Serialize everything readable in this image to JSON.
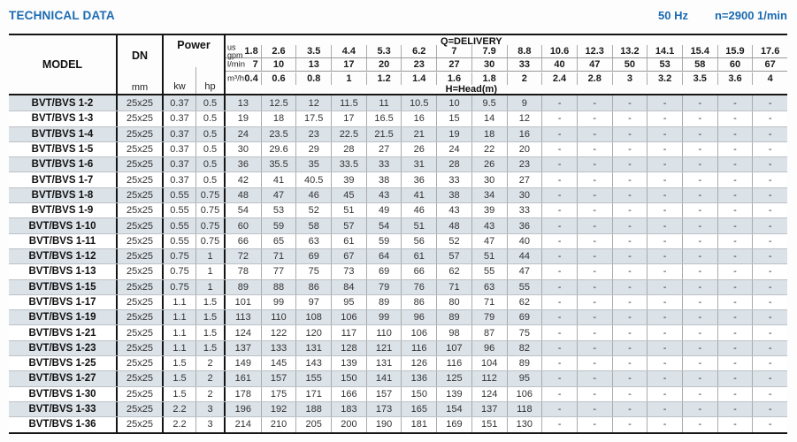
{
  "page": {
    "title": "TECHNICAL DATA",
    "frequency": "50 Hz",
    "speed": "n=2900 1/min"
  },
  "table": {
    "headers": {
      "model": "MODEL",
      "dn": "DN",
      "dn_unit": "mm",
      "power": "Power",
      "power_kw": "kw",
      "power_hp": "hp",
      "delivery_title": "Q=DELIVERY",
      "head_title": "H=Head(m)",
      "unit_rows": [
        {
          "label": "us\ngpm",
          "values": [
            "1.8",
            "2.6",
            "3.5",
            "4.4",
            "5.3",
            "6.2",
            "7",
            "7.9",
            "8.8",
            "10.6",
            "12.3",
            "13.2",
            "14.1",
            "15.4",
            "15.9",
            "17.6"
          ]
        },
        {
          "label": "l/min",
          "values": [
            "7",
            "10",
            "13",
            "17",
            "20",
            "23",
            "27",
            "30",
            "33",
            "40",
            "47",
            "50",
            "53",
            "58",
            "60",
            "67"
          ]
        },
        {
          "label": "m³/h",
          "values": [
            "0.4",
            "0.6",
            "0.8",
            "1",
            "1.2",
            "1.4",
            "1.6",
            "1.8",
            "2",
            "2.4",
            "2.8",
            "3",
            "3.2",
            "3.5",
            "3.6",
            "4"
          ]
        }
      ]
    },
    "rows": [
      {
        "model": "BVT/BVS 1-2",
        "dn": "25x25",
        "kw": "0.37",
        "hp": "0.5",
        "head": [
          "13",
          "12.5",
          "12",
          "11.5",
          "11",
          "10.5",
          "10",
          "9.5",
          "9",
          "-",
          "-",
          "-",
          "-",
          "-",
          "-",
          "-"
        ]
      },
      {
        "model": "BVT/BVS 1-3",
        "dn": "25x25",
        "kw": "0.37",
        "hp": "0.5",
        "head": [
          "19",
          "18",
          "17.5",
          "17",
          "16.5",
          "16",
          "15",
          "14",
          "12",
          "-",
          "-",
          "-",
          "-",
          "-",
          "-",
          "-"
        ]
      },
      {
        "model": "BVT/BVS 1-4",
        "dn": "25x25",
        "kw": "0.37",
        "hp": "0.5",
        "head": [
          "24",
          "23.5",
          "23",
          "22.5",
          "21.5",
          "21",
          "19",
          "18",
          "16",
          "-",
          "-",
          "-",
          "-",
          "-",
          "-",
          "-"
        ]
      },
      {
        "model": "BVT/BVS 1-5",
        "dn": "25x25",
        "kw": "0.37",
        "hp": "0.5",
        "head": [
          "30",
          "29.6",
          "29",
          "28",
          "27",
          "26",
          "24",
          "22",
          "20",
          "-",
          "-",
          "-",
          "-",
          "-",
          "-",
          "-"
        ]
      },
      {
        "model": "BVT/BVS 1-6",
        "dn": "25x25",
        "kw": "0.37",
        "hp": "0.5",
        "head": [
          "36",
          "35.5",
          "35",
          "33.5",
          "33",
          "31",
          "28",
          "26",
          "23",
          "-",
          "-",
          "-",
          "-",
          "-",
          "-",
          "-"
        ]
      },
      {
        "model": "BVT/BVS 1-7",
        "dn": "25x25",
        "kw": "0.37",
        "hp": "0.5",
        "head": [
          "42",
          "41",
          "40.5",
          "39",
          "38",
          "36",
          "33",
          "30",
          "27",
          "-",
          "-",
          "-",
          "-",
          "-",
          "-",
          "-"
        ]
      },
      {
        "model": "BVT/BVS 1-8",
        "dn": "25x25",
        "kw": "0.55",
        "hp": "0.75",
        "head": [
          "48",
          "47",
          "46",
          "45",
          "43",
          "41",
          "38",
          "34",
          "30",
          "-",
          "-",
          "-",
          "-",
          "-",
          "-",
          "-"
        ]
      },
      {
        "model": "BVT/BVS 1-9",
        "dn": "25x25",
        "kw": "0.55",
        "hp": "0.75",
        "head": [
          "54",
          "53",
          "52",
          "51",
          "49",
          "46",
          "43",
          "39",
          "33",
          "-",
          "-",
          "-",
          "-",
          "-",
          "-",
          "-"
        ]
      },
      {
        "model": "BVT/BVS 1-10",
        "dn": "25x25",
        "kw": "0.55",
        "hp": "0.75",
        "head": [
          "60",
          "59",
          "58",
          "57",
          "54",
          "51",
          "48",
          "43",
          "36",
          "-",
          "-",
          "-",
          "-",
          "-",
          "-",
          "-"
        ]
      },
      {
        "model": "BVT/BVS 1-11",
        "dn": "25x25",
        "kw": "0.55",
        "hp": "0.75",
        "head": [
          "66",
          "65",
          "63",
          "61",
          "59",
          "56",
          "52",
          "47",
          "40",
          "-",
          "-",
          "-",
          "-",
          "-",
          "-",
          "-"
        ]
      },
      {
        "model": "BVT/BVS 1-12",
        "dn": "25x25",
        "kw": "0.75",
        "hp": "1",
        "head": [
          "72",
          "71",
          "69",
          "67",
          "64",
          "61",
          "57",
          "51",
          "44",
          "-",
          "-",
          "-",
          "-",
          "-",
          "-",
          "-"
        ]
      },
      {
        "model": "BVT/BVS 1-13",
        "dn": "25x25",
        "kw": "0.75",
        "hp": "1",
        "head": [
          "78",
          "77",
          "75",
          "73",
          "69",
          "66",
          "62",
          "55",
          "47",
          "-",
          "-",
          "-",
          "-",
          "-",
          "-",
          "-"
        ]
      },
      {
        "model": "BVT/BVS 1-15",
        "dn": "25x25",
        "kw": "0.75",
        "hp": "1",
        "head": [
          "89",
          "88",
          "86",
          "84",
          "79",
          "76",
          "71",
          "63",
          "55",
          "-",
          "-",
          "-",
          "-",
          "-",
          "-",
          "-"
        ]
      },
      {
        "model": "BVT/BVS 1-17",
        "dn": "25x25",
        "kw": "1.1",
        "hp": "1.5",
        "head": [
          "101",
          "99",
          "97",
          "95",
          "89",
          "86",
          "80",
          "71",
          "62",
          "-",
          "-",
          "-",
          "-",
          "-",
          "-",
          "-"
        ]
      },
      {
        "model": "BVT/BVS 1-19",
        "dn": "25x25",
        "kw": "1.1",
        "hp": "1.5",
        "head": [
          "113",
          "110",
          "108",
          "106",
          "99",
          "96",
          "89",
          "79",
          "69",
          "-",
          "-",
          "-",
          "-",
          "-",
          "-",
          "-"
        ]
      },
      {
        "model": "BVT/BVS 1-21",
        "dn": "25x25",
        "kw": "1.1",
        "hp": "1.5",
        "head": [
          "124",
          "122",
          "120",
          "117",
          "110",
          "106",
          "98",
          "87",
          "75",
          "-",
          "-",
          "-",
          "-",
          "-",
          "-",
          "-"
        ]
      },
      {
        "model": "BVT/BVS 1-23",
        "dn": "25x25",
        "kw": "1.1",
        "hp": "1.5",
        "head": [
          "137",
          "133",
          "131",
          "128",
          "121",
          "116",
          "107",
          "96",
          "82",
          "-",
          "-",
          "-",
          "-",
          "-",
          "-",
          "-"
        ]
      },
      {
        "model": "BVT/BVS 1-25",
        "dn": "25x25",
        "kw": "1.5",
        "hp": "2",
        "head": [
          "149",
          "145",
          "143",
          "139",
          "131",
          "126",
          "116",
          "104",
          "89",
          "-",
          "-",
          "-",
          "-",
          "-",
          "-",
          "-"
        ]
      },
      {
        "model": "BVT/BVS 1-27",
        "dn": "25x25",
        "kw": "1.5",
        "hp": "2",
        "head": [
          "161",
          "157",
          "155",
          "150",
          "141",
          "136",
          "125",
          "112",
          "95",
          "-",
          "-",
          "-",
          "-",
          "-",
          "-",
          "-"
        ]
      },
      {
        "model": "BVT/BVS 1-30",
        "dn": "25x25",
        "kw": "1.5",
        "hp": "2",
        "head": [
          "178",
          "175",
          "171",
          "166",
          "157",
          "150",
          "139",
          "124",
          "106",
          "-",
          "-",
          "-",
          "-",
          "-",
          "-",
          "-"
        ]
      },
      {
        "model": "BVT/BVS 1-33",
        "dn": "25x25",
        "kw": "2.2",
        "hp": "3",
        "head": [
          "196",
          "192",
          "188",
          "183",
          "173",
          "165",
          "154",
          "137",
          "118",
          "-",
          "-",
          "-",
          "-",
          "-",
          "-",
          "-"
        ]
      },
      {
        "model": "BVT/BVS 1-36",
        "dn": "25x25",
        "kw": "2.2",
        "hp": "3",
        "head": [
          "214",
          "210",
          "205",
          "200",
          "190",
          "181",
          "169",
          "151",
          "130",
          "-",
          "-",
          "-",
          "-",
          "-",
          "-",
          "-"
        ]
      }
    ]
  }
}
